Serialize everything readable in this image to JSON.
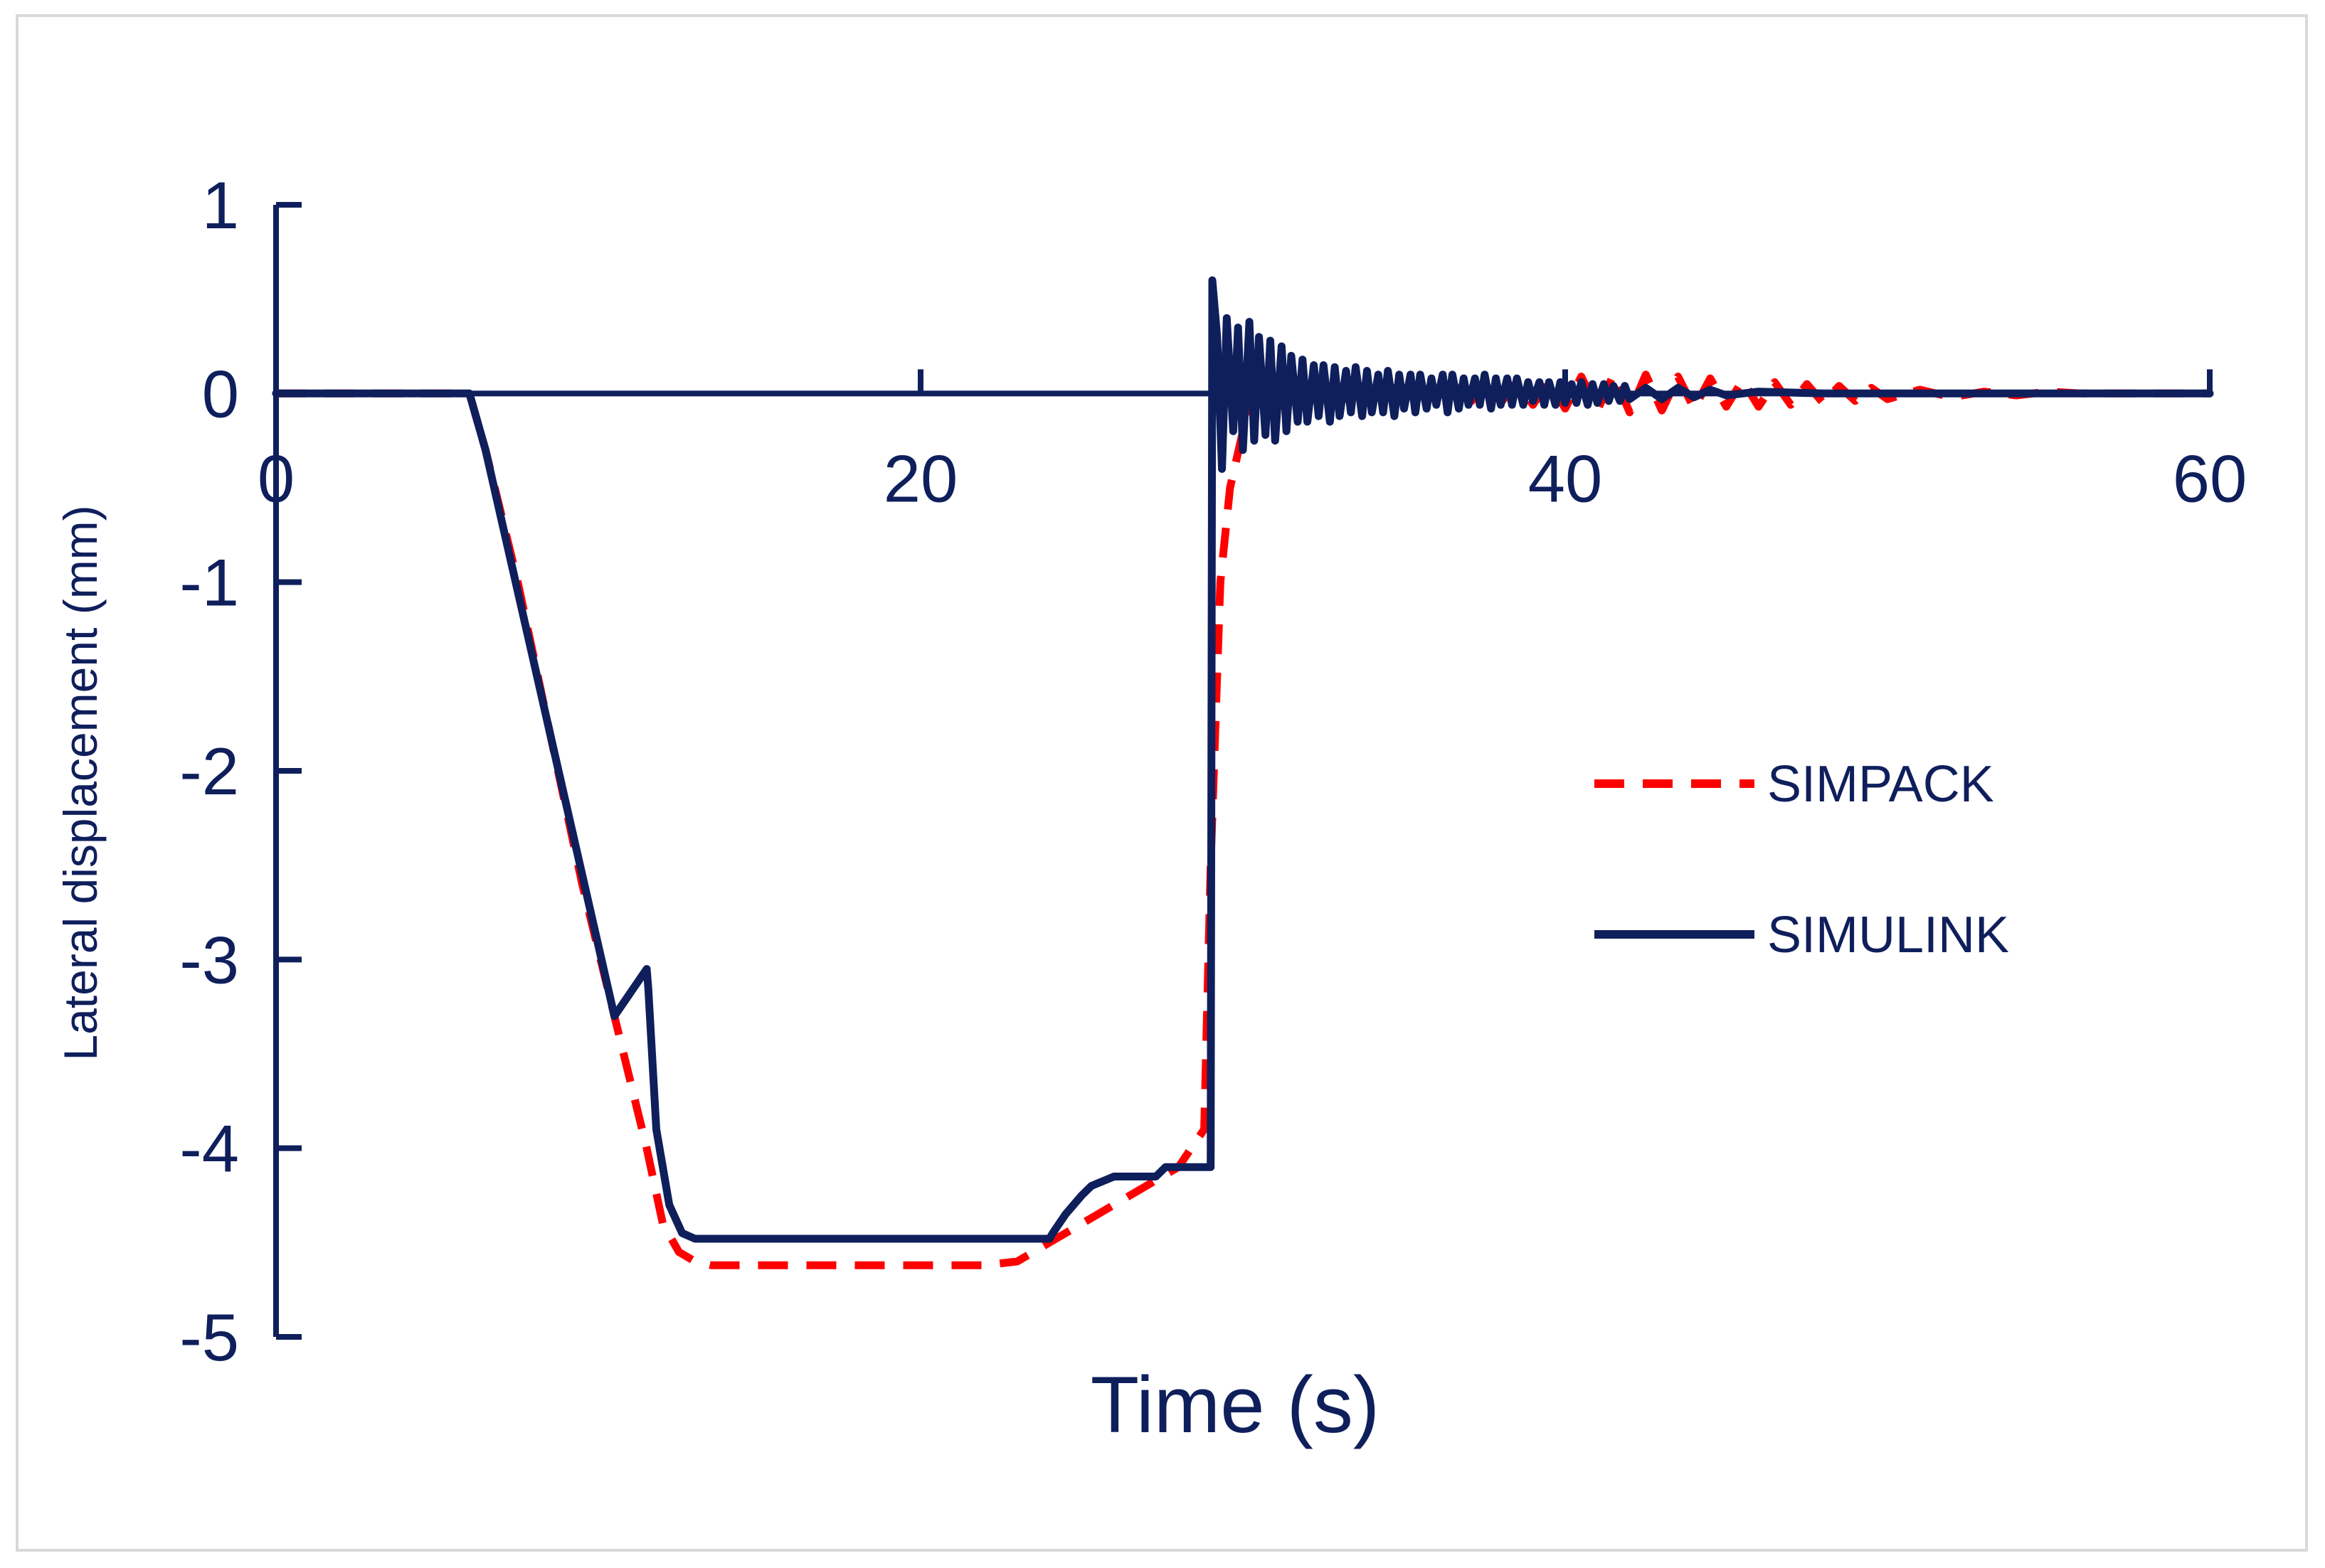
{
  "chart_data": {
    "type": "line",
    "xlabel": "Time (s)",
    "ylabel": "Lateral displacement (mm)",
    "xlim": [
      0,
      60
    ],
    "ylim": [
      -5,
      1
    ],
    "x_ticks": [
      0,
      20,
      40,
      60
    ],
    "y_ticks": [
      1,
      0,
      -1,
      -2,
      -3,
      -4,
      -5
    ],
    "grid": false,
    "legend_position": "right",
    "colors": {
      "axis": "#0f1f5c",
      "simpack": "#ff0000",
      "simulink": "#0f1f5c"
    },
    "series": [
      {
        "name": "SIMPACK",
        "style": "dashed",
        "x": [
          0,
          6.0,
          6.5,
          7.5,
          8.5,
          9.5,
          10.5,
          11.5,
          12.0,
          12.5,
          13.0,
          13.5,
          14.5,
          16.0,
          18.0,
          20.0,
          22.0,
          23.0,
          24.0,
          25.0,
          26.0,
          27.0,
          28.0,
          28.8,
          29.0,
          29.3,
          29.6,
          30.0,
          30.5,
          31.0,
          31.5,
          32.0,
          32.5,
          33.0,
          33.5,
          34.0,
          34.5,
          35.0,
          35.5,
          36.0,
          36.5,
          37.0,
          37.5,
          38.0,
          38.5,
          39.0,
          39.5,
          40.0,
          40.5,
          41.0,
          41.5,
          42.0,
          42.5,
          43.0,
          43.5,
          44.0,
          44.5,
          45.0,
          45.5,
          46.0,
          46.5,
          47.0,
          47.5,
          48.0,
          48.5,
          49.0,
          49.5,
          50.0,
          51.0,
          52.0,
          53.0,
          54.0,
          55.0,
          56.0,
          58.0,
          60.0
        ],
        "y": [
          0,
          0,
          -0.3,
          -1.0,
          -1.8,
          -2.6,
          -3.3,
          -4.0,
          -4.4,
          -4.55,
          -4.6,
          -4.62,
          -4.62,
          -4.62,
          -4.62,
          -4.62,
          -4.62,
          -4.6,
          -4.5,
          -4.4,
          -4.3,
          -4.2,
          -4.1,
          -3.9,
          -2.5,
          -1.0,
          -0.5,
          -0.2,
          0.05,
          -0.05,
          0.06,
          -0.05,
          0.05,
          -0.06,
          0.07,
          -0.07,
          0.06,
          -0.06,
          0.05,
          -0.05,
          0.06,
          -0.06,
          0.05,
          -0.05,
          0.06,
          -0.06,
          0.07,
          -0.08,
          0.09,
          -0.09,
          0.1,
          -0.1,
          0.1,
          -0.09,
          0.09,
          -0.08,
          0.08,
          -0.07,
          0.07,
          -0.07,
          0.06,
          -0.06,
          0.05,
          -0.05,
          0.04,
          -0.04,
          0.03,
          -0.03,
          0.02,
          -0.02,
          0.01,
          -0.01,
          0.01,
          0,
          0,
          0
        ]
      },
      {
        "name": "SIMULINK",
        "style": "solid",
        "x": [
          0,
          6.0,
          6.5,
          7.5,
          8.5,
          9.5,
          10.5,
          11.5,
          11.55,
          11.8,
          12.2,
          12.6,
          13.0,
          13.5,
          14.5,
          16.0,
          18.0,
          20.0,
          22.0,
          23.0,
          24.0,
          24.1,
          24.5,
          25.0,
          25.3,
          26.0,
          27.0,
          27.3,
          27.6,
          29.0,
          29.05,
          29.2,
          29.35,
          29.5,
          29.7,
          29.85,
          30.0,
          30.2,
          30.35,
          30.5,
          30.7,
          30.85,
          31.0,
          31.2,
          31.35,
          31.5,
          31.7,
          31.85,
          32.0,
          32.2,
          32.35,
          32.5,
          32.7,
          32.85,
          33.0,
          33.2,
          33.35,
          33.5,
          33.7,
          33.85,
          34.0,
          34.2,
          34.35,
          34.5,
          34.7,
          34.85,
          35.0,
          35.2,
          35.35,
          35.5,
          35.7,
          35.85,
          36.0,
          36.2,
          36.35,
          36.5,
          36.7,
          36.85,
          37.0,
          37.2,
          37.35,
          37.5,
          37.7,
          37.85,
          38.0,
          38.2,
          38.35,
          38.5,
          38.7,
          38.85,
          39.0,
          39.2,
          39.35,
          39.5,
          39.7,
          39.85,
          40.0,
          40.2,
          40.35,
          40.5,
          40.7,
          40.85,
          41.0,
          41.2,
          41.35,
          41.5,
          41.7,
          41.85,
          42.0,
          42.5,
          43.0,
          43.5,
          44.0,
          44.5,
          45.0,
          46.0,
          48.0,
          50.0,
          55.0,
          60.0
        ],
        "y": [
          0,
          0,
          -0.3,
          -1.05,
          -1.8,
          -2.55,
          -3.3,
          -3.05,
          -3.15,
          -3.9,
          -4.3,
          -4.45,
          -4.48,
          -4.48,
          -4.48,
          -4.48,
          -4.48,
          -4.48,
          -4.48,
          -4.48,
          -4.48,
          -4.45,
          -4.35,
          -4.25,
          -4.2,
          -4.15,
          -4.15,
          -4.15,
          -4.1,
          -4.1,
          0.6,
          0.3,
          -0.4,
          0.4,
          -0.2,
          0.35,
          -0.3,
          0.38,
          -0.25,
          0.3,
          -0.22,
          0.28,
          -0.25,
          0.25,
          -0.2,
          0.2,
          -0.15,
          0.18,
          -0.15,
          0.15,
          -0.12,
          0.15,
          -0.15,
          0.14,
          -0.12,
          0.12,
          -0.1,
          0.14,
          -0.12,
          0.12,
          -0.1,
          0.1,
          -0.1,
          0.12,
          -0.12,
          0.1,
          -0.08,
          0.1,
          -0.1,
          0.1,
          -0.08,
          0.08,
          -0.06,
          0.1,
          -0.1,
          0.1,
          -0.08,
          0.08,
          -0.06,
          0.08,
          -0.06,
          0.1,
          -0.08,
          0.08,
          -0.06,
          0.08,
          -0.06,
          0.08,
          -0.06,
          0.06,
          -0.04,
          0.06,
          -0.06,
          0.06,
          -0.06,
          0.06,
          -0.05,
          0.05,
          -0.05,
          0.06,
          -0.06,
          0.05,
          -0.05,
          0.05,
          -0.04,
          0.04,
          -0.04,
          0.04,
          -0.03,
          0.03,
          -0.03,
          0.03,
          -0.02,
          0.02,
          -0.01,
          0.01,
          0,
          0,
          0,
          0
        ]
      }
    ]
  }
}
